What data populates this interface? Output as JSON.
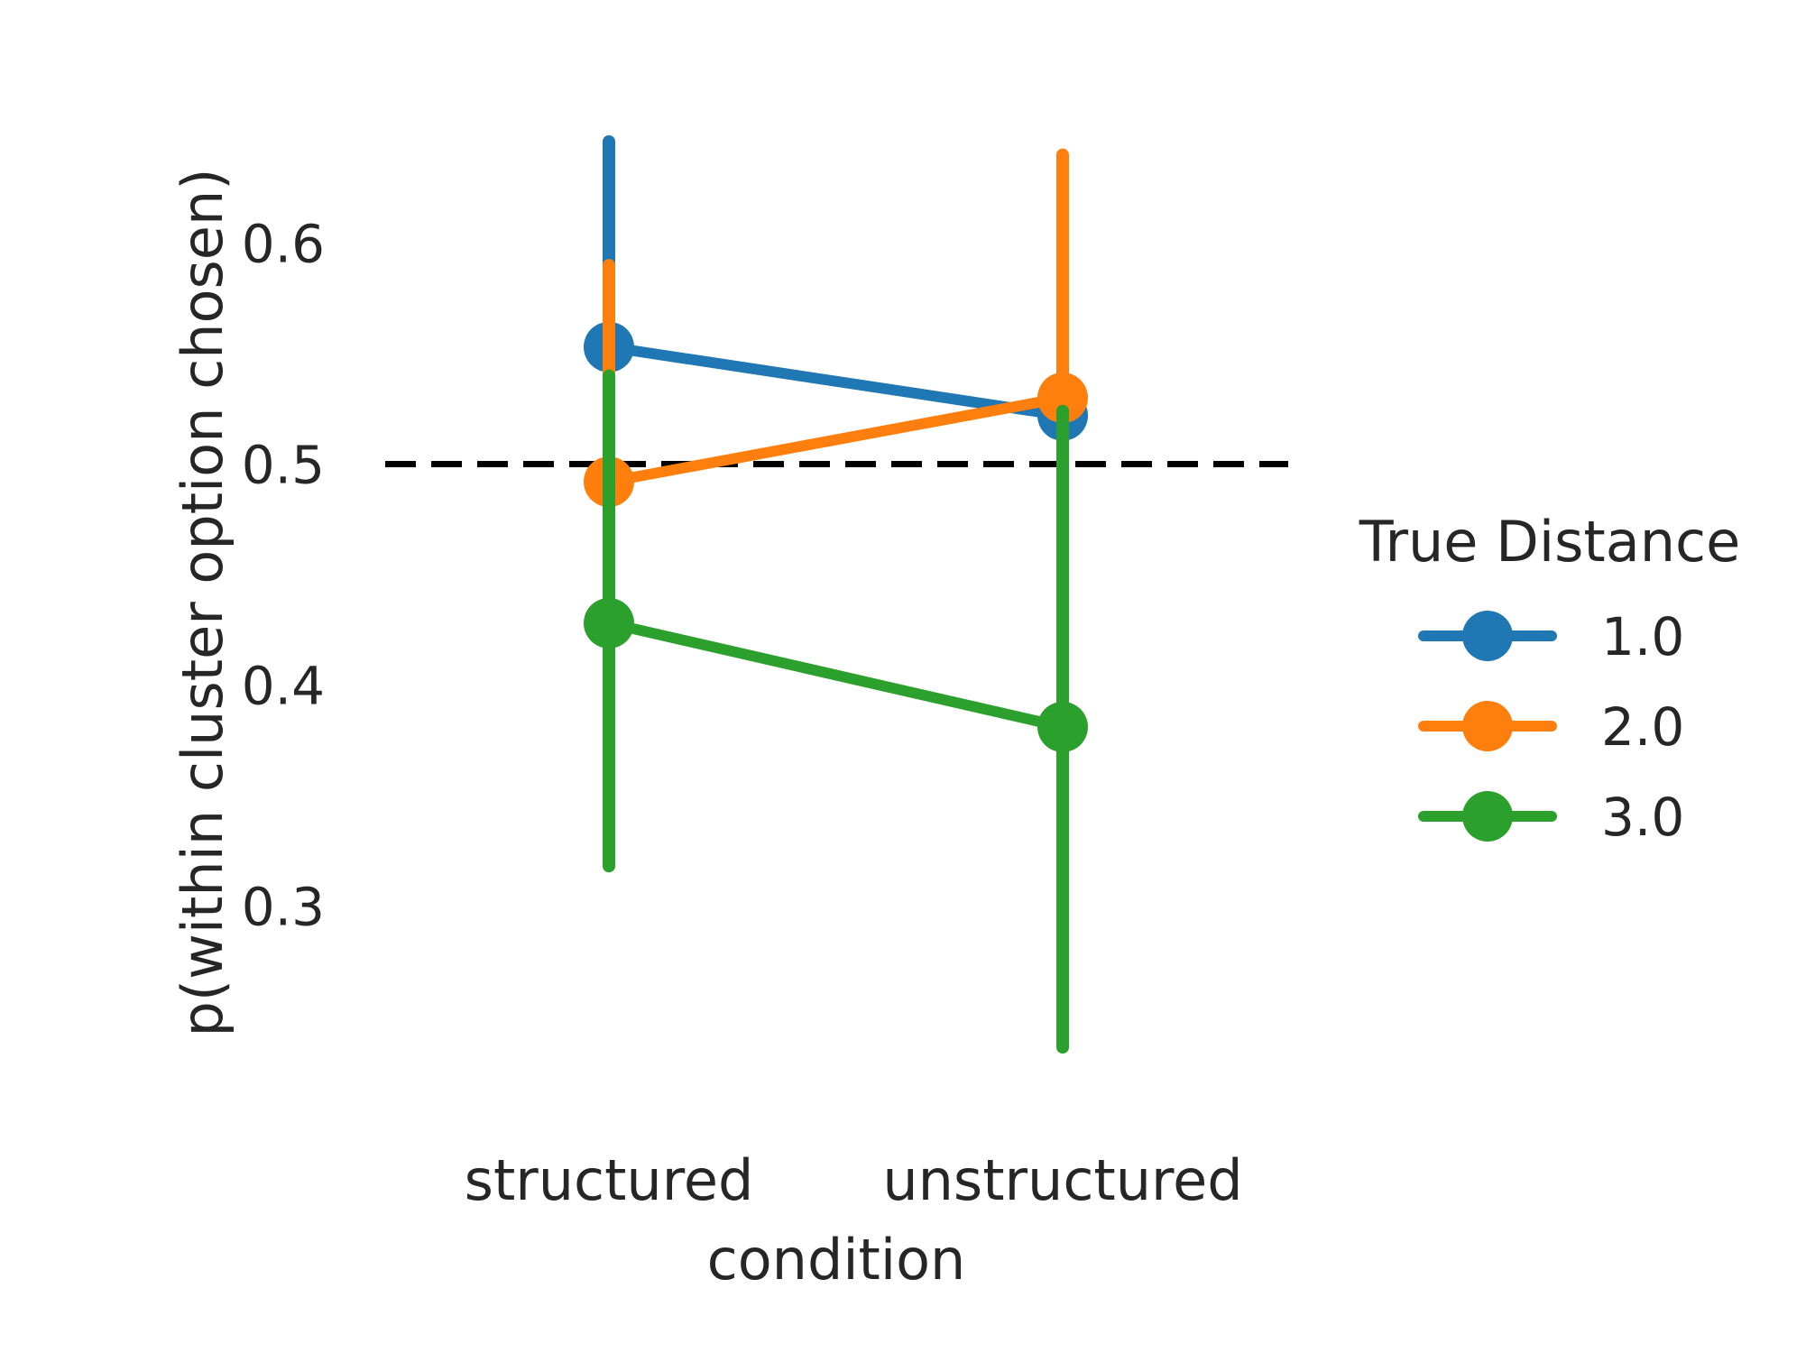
{
  "chart_data": {
    "type": "line",
    "title": "",
    "xlabel": "condition",
    "ylabel": "p(within cluster option chosen)",
    "categories": [
      "structured",
      "unstructured"
    ],
    "yticks": [
      "0.3",
      "0.4",
      "0.5",
      "0.6"
    ],
    "ylim": [
      0.216,
      0.666
    ],
    "reference_line": {
      "y": 0.5,
      "style": "dashed",
      "color": "#000000"
    },
    "grid": false,
    "legend": {
      "title": "True Distance",
      "placement": "right",
      "entries": [
        "1.0",
        "2.0",
        "3.0"
      ]
    },
    "series": [
      {
        "name": "1.0",
        "color": "#1f77b4",
        "values": [
          0.553,
          0.522
        ],
        "ci": [
          [
            0.497,
            0.646
          ],
          [
            0.498,
            0.562
          ]
        ]
      },
      {
        "name": "2.0",
        "color": "#ff7f0e",
        "values": [
          0.492,
          0.53
        ],
        "ci": [
          [
            0.468,
            0.59
          ],
          [
            0.463,
            0.64
          ]
        ]
      },
      {
        "name": "3.0",
        "color": "#2ca02c",
        "values": [
          0.428,
          0.381
        ],
        "ci": [
          [
            0.318,
            0.54
          ],
          [
            0.236,
            0.524
          ]
        ]
      }
    ]
  }
}
